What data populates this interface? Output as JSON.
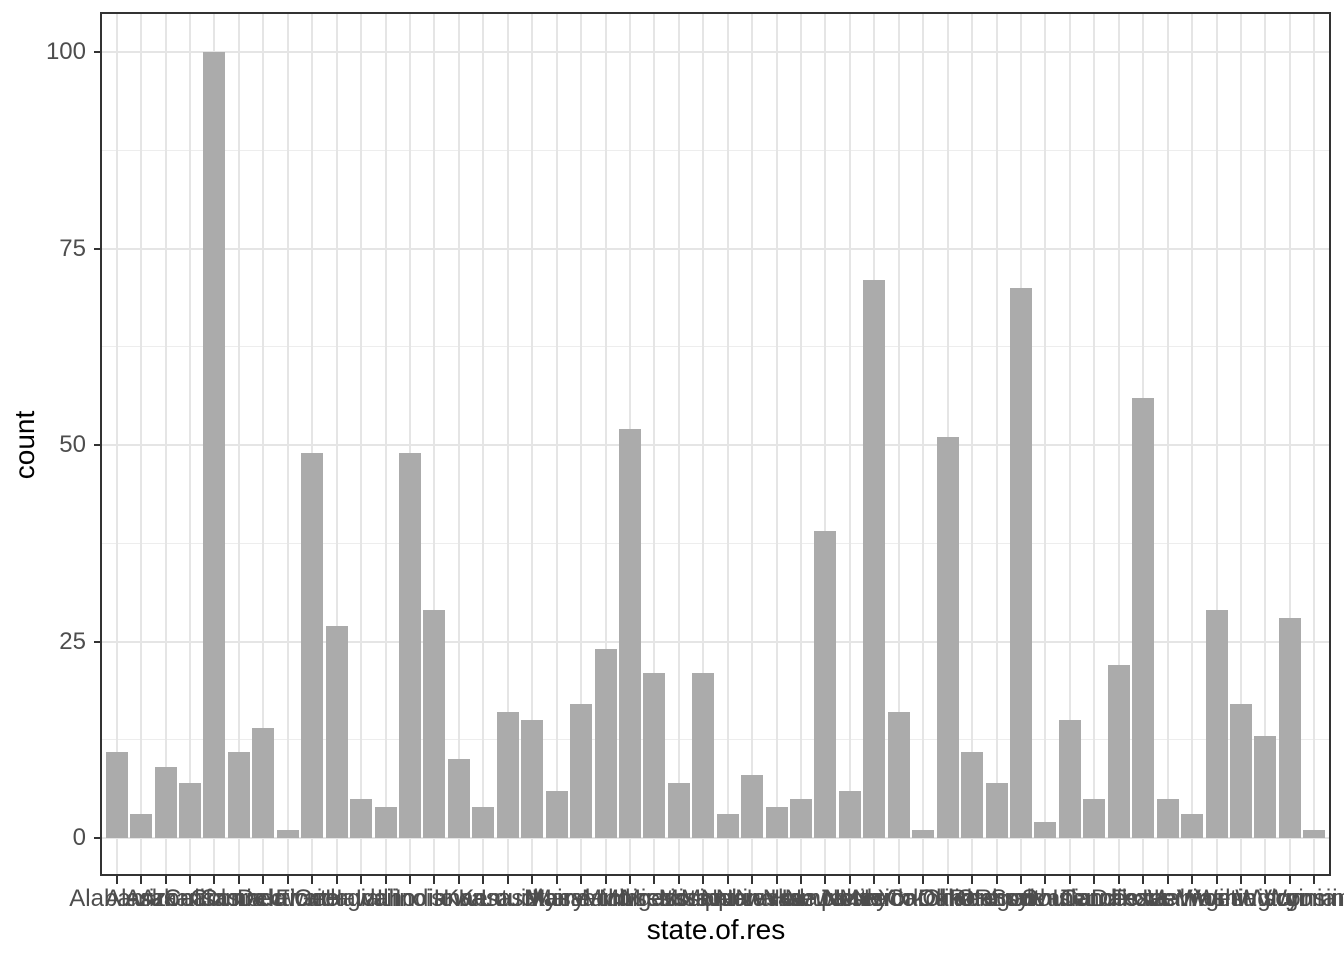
{
  "chart_data": {
    "type": "bar",
    "title": "",
    "xlabel": "state.of.res",
    "ylabel": "count",
    "categories": [
      "Alabama",
      "Alaska",
      "Arizona",
      "Arkansas",
      "California",
      "Colorado",
      "Connecticut",
      "Delaware",
      "Florida",
      "Georgia",
      "Hawaii",
      "Idaho",
      "Illinois",
      "Indiana",
      "Iowa",
      "Kansas",
      "Kentucky",
      "Louisiana",
      "Maine",
      "Maryland",
      "Massachusetts",
      "Michigan",
      "Minnesota",
      "Mississippi",
      "Missouri",
      "Montana",
      "Nebraska",
      "Nevada",
      "New Hampshire",
      "New Jersey",
      "New Mexico",
      "New York",
      "North Carolina",
      "North Dakota",
      "Ohio",
      "Oklahoma",
      "Oregon",
      "Pennsylvania",
      "Rhode Island",
      "South Carolina",
      "South Dakota",
      "Tennessee",
      "Texas",
      "Utah",
      "Vermont",
      "Virginia",
      "Washington",
      "West Virginia",
      "Wisconsin",
      "Wyoming"
    ],
    "values": [
      11,
      3,
      9,
      7,
      100,
      11,
      14,
      1,
      49,
      27,
      5,
      4,
      49,
      29,
      10,
      4,
      16,
      15,
      6,
      17,
      24,
      52,
      21,
      7,
      21,
      3,
      8,
      4,
      5,
      39,
      6,
      71,
      16,
      1,
      51,
      11,
      7,
      70,
      2,
      15,
      5,
      22,
      56,
      5,
      3,
      29,
      17,
      13,
      28,
      1
    ],
    "yticks": [
      0,
      25,
      50,
      75,
      100
    ],
    "yminorticks": [
      12.5,
      37.5,
      62.5,
      87.5
    ],
    "ylim": [
      -5,
      105
    ],
    "grid": "on",
    "legend": "none",
    "bar_color": "#ababab",
    "panel_border_color": "#333333",
    "grid_major_color": "#e5e5e5",
    "grid_minor_color": "#ededed",
    "tick_label_color": "#4d4d4d",
    "axis_title_color": "#000000"
  }
}
